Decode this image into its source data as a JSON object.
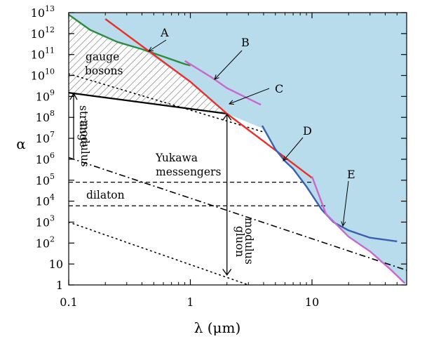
{
  "chart_data": {
    "type": "line",
    "xlabel": "λ (μm)",
    "ylabel": "α",
    "x_scale": "log",
    "y_scale": "log",
    "xlim": [
      0.1,
      60
    ],
    "ylim": [
      1,
      10000000000000.0
    ],
    "x_ticks": [
      {
        "value": 0.1,
        "label": "0.1"
      },
      {
        "value": 1,
        "label": "1"
      },
      {
        "value": 10,
        "label": "10"
      }
    ],
    "y_ticks": [
      {
        "value": 1,
        "base": "1",
        "exp": ""
      },
      {
        "value": 10,
        "base": "10",
        "exp": ""
      },
      {
        "value": 100,
        "base": "10",
        "exp": "2"
      },
      {
        "value": 1000,
        "base": "10",
        "exp": "3"
      },
      {
        "value": 10000,
        "base": "10",
        "exp": "4"
      },
      {
        "value": 100000,
        "base": "10",
        "exp": "5"
      },
      {
        "value": 1000000,
        "base": "10",
        "exp": "6"
      },
      {
        "value": 10000000,
        "base": "10",
        "exp": "7"
      },
      {
        "value": 100000000,
        "base": "10",
        "exp": "8"
      },
      {
        "value": 1000000000,
        "base": "10",
        "exp": "9"
      },
      {
        "value": 10000000000,
        "base": "10",
        "exp": "10"
      },
      {
        "value": 100000000000,
        "base": "10",
        "exp": "11"
      },
      {
        "value": 1000000000000,
        "base": "10",
        "exp": "12"
      },
      {
        "value": 10000000000000,
        "base": "10",
        "exp": "13"
      }
    ],
    "excluded_region_color": "#b9dcec",
    "series": [
      {
        "name": "A",
        "color": "#2e8b3e",
        "points": [
          [
            0.1,
            8000000000000.0
          ],
          [
            0.15,
            1500000000000.0
          ],
          [
            0.25,
            400000000000.0
          ],
          [
            0.4,
            180000000000.0
          ],
          [
            0.6,
            80000000000.0
          ],
          [
            0.9,
            35000000000.0
          ],
          [
            1.0,
            30000000000.0
          ]
        ]
      },
      {
        "name": "C",
        "color": "#e8302a",
        "points": [
          [
            0.2,
            5000000000000.0
          ],
          [
            1.0,
            5000000000.0
          ],
          [
            2.0,
            150000000.0
          ],
          [
            10.0,
            130000.0
          ]
        ]
      },
      {
        "name": "B",
        "color": "#cc66cc",
        "points": [
          [
            0.9,
            50000000000.0
          ],
          [
            1.5,
            8000000000.0
          ],
          [
            2.0,
            2500000000.0
          ],
          [
            3.8,
            400000000.0
          ]
        ]
      },
      {
        "name": "D",
        "color": "#3a5fb0",
        "points": [
          [
            3.9,
            40000000.0
          ],
          [
            5,
            3000000.0
          ],
          [
            6,
            800000.0
          ],
          [
            7,
            350000.0
          ],
          [
            9,
            50000.0
          ],
          [
            12,
            4000.0
          ],
          [
            15,
            1000.0
          ],
          [
            20,
            400
          ],
          [
            30,
            180
          ],
          [
            50,
            120
          ]
        ]
      },
      {
        "name": "E",
        "color": "#cc66cc",
        "points": [
          [
            10,
            150000.0
          ],
          [
            13,
            2500.0
          ],
          [
            20,
            200
          ],
          [
            30,
            40
          ],
          [
            45,
            5
          ],
          [
            58,
            1.2
          ]
        ]
      }
    ],
    "annotations": {
      "gauge_line1": "gauge",
      "gauge_line2": "bosons",
      "strange_line1": "strange",
      "strange_line2": "modulus",
      "yukawa_line1": "Yukawa",
      "yukawa_line2": "messengers",
      "dilaton": "dilaton",
      "gluon_line1": "gluon",
      "gluon_line2": "modulus"
    },
    "reference_lines": {
      "gauge_solid": [
        [
          0.1,
          1500000000.0
        ],
        [
          2.0,
          150000000.0
        ]
      ],
      "gauge_dotted": [
        [
          0.1,
          12000000000.0
        ],
        [
          4.0,
          20000000.0
        ]
      ],
      "strange_dashdot": [
        [
          0.1,
          1200000.0
        ],
        [
          60,
          5
        ]
      ],
      "strange_dotted": [
        [
          0.1,
          1000
        ],
        [
          3.0,
          1
        ]
      ],
      "dilaton_upper_dashed": [
        [
          0.1,
          80000.0
        ],
        [
          10,
          80000.0
        ]
      ],
      "dilaton_lower_dashed": [
        [
          0.1,
          6000.0
        ],
        [
          13,
          6000.0
        ]
      ],
      "strange_arrow": [
        [
          0.1,
          1100000.0
        ],
        [
          0.1,
          1400000000.0
        ]
      ],
      "gluon_arrow": [
        [
          2.0,
          3
        ],
        [
          2.0,
          140000000.0
        ]
      ]
    }
  }
}
